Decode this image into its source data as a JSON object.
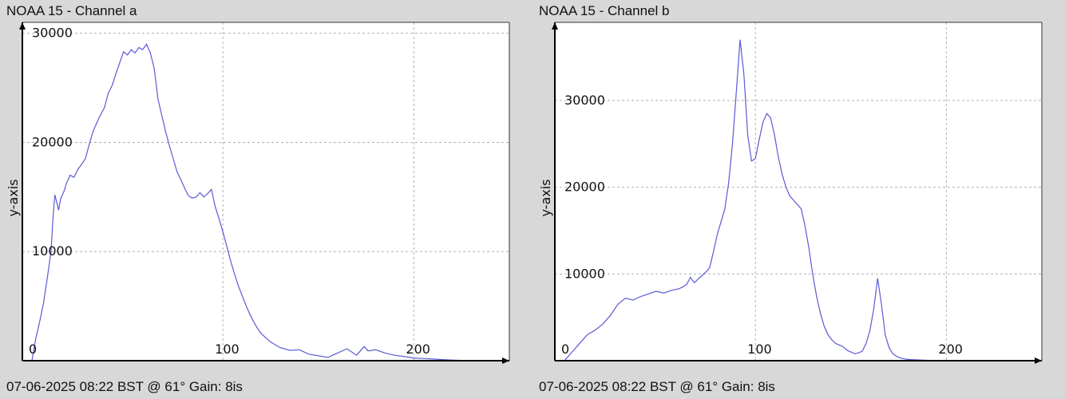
{
  "chart_data": [
    {
      "type": "line",
      "title": "NOAA 15 - Channel a",
      "footer": "07-06-2025 08:22 BST @ 61° Gain: 8is",
      "xlabel": "",
      "ylabel": "y-axis",
      "xlim": [
        -5,
        250
      ],
      "ylim": [
        0,
        31000
      ],
      "xticks": [
        0,
        100,
        200
      ],
      "yticks": [
        10000,
        20000,
        30000
      ],
      "grid": true,
      "line_color": "#5a5ad6",
      "x": [
        0,
        2,
        4,
        6,
        8,
        10,
        11,
        12,
        13,
        14,
        15,
        17,
        18,
        20,
        22,
        24,
        26,
        28,
        30,
        32,
        35,
        38,
        40,
        42,
        44,
        46,
        48,
        50,
        52,
        54,
        56,
        58,
        60,
        62,
        64,
        66,
        68,
        70,
        72,
        74,
        76,
        78,
        80,
        82,
        84,
        86,
        88,
        90,
        92,
        94,
        96,
        98,
        100,
        102,
        104,
        106,
        108,
        110,
        112,
        114,
        116,
        118,
        120,
        125,
        130,
        135,
        140,
        145,
        150,
        155,
        160,
        165,
        170,
        172,
        174,
        176,
        180,
        185,
        190,
        194,
        196,
        198,
        200,
        205,
        210,
        215,
        220,
        225,
        230,
        235,
        240
      ],
      "y": [
        0,
        2000,
        3500,
        5200,
        7500,
        10000,
        13000,
        15200,
        14500,
        13800,
        14800,
        15600,
        16200,
        17000,
        16800,
        17500,
        18000,
        18500,
        19800,
        21000,
        22200,
        23200,
        24500,
        25200,
        26300,
        27300,
        28300,
        28000,
        28500,
        28200,
        28700,
        28500,
        29000,
        28200,
        26800,
        24000,
        22500,
        21000,
        19700,
        18500,
        17300,
        16600,
        15800,
        15100,
        14900,
        15000,
        15400,
        15000,
        15300,
        15700,
        14100,
        13000,
        11800,
        10500,
        9200,
        8000,
        6900,
        6000,
        5100,
        4300,
        3600,
        3000,
        2500,
        1700,
        1200,
        950,
        1000,
        600,
        450,
        300,
        700,
        1100,
        500,
        900,
        1300,
        900,
        1000,
        700,
        500,
        400,
        350,
        300,
        250,
        200,
        150,
        100,
        60,
        30,
        10,
        5,
        0
      ]
    },
    {
      "type": "line",
      "title": "NOAA 15 - Channel b",
      "footer": "07-06-2025 08:22 BST @ 61° Gain: 8is",
      "xlabel": "",
      "ylabel": "y-axis",
      "xlim": [
        -5,
        250
      ],
      "ylim": [
        0,
        39000
      ],
      "xticks": [
        0,
        100,
        200
      ],
      "yticks": [
        10000,
        20000,
        30000
      ],
      "grid": true,
      "line_color": "#5a5ad6",
      "x": [
        0,
        4,
        8,
        12,
        16,
        20,
        24,
        28,
        32,
        36,
        40,
        44,
        48,
        52,
        56,
        60,
        62,
        64,
        66,
        68,
        70,
        72,
        74,
        76,
        78,
        80,
        82,
        84,
        86,
        88,
        90,
        92,
        94,
        96,
        98,
        100,
        102,
        104,
        106,
        108,
        110,
        112,
        114,
        116,
        118,
        120,
        122,
        124,
        126,
        128,
        130,
        132,
        134,
        136,
        138,
        140,
        142,
        144,
        146,
        148,
        150,
        152,
        154,
        156,
        158,
        160,
        162,
        164,
        166,
        168,
        170,
        172,
        174,
        176,
        178,
        180,
        182,
        184,
        186,
        188,
        190,
        192,
        194,
        196,
        198,
        200
      ],
      "y": [
        0,
        1000,
        2000,
        3000,
        3500,
        4200,
        5200,
        6500,
        7200,
        7000,
        7400,
        7700,
        8000,
        7800,
        8100,
        8300,
        8500,
        8800,
        9600,
        9000,
        9400,
        9800,
        10200,
        10700,
        12500,
        14500,
        16000,
        17500,
        20500,
        25000,
        31000,
        37000,
        33000,
        26000,
        23000,
        23300,
        25500,
        27500,
        28500,
        28000,
        26000,
        23500,
        21500,
        20000,
        19000,
        18500,
        18000,
        17500,
        15500,
        13000,
        10000,
        7500,
        5500,
        4000,
        3000,
        2400,
        2000,
        1800,
        1600,
        1200,
        1000,
        800,
        900,
        1100,
        2000,
        3500,
        6000,
        9500,
        6500,
        3000,
        1500,
        800,
        500,
        300,
        200,
        150,
        120,
        100,
        80,
        60,
        50,
        40,
        30,
        20,
        10,
        0
      ]
    }
  ]
}
